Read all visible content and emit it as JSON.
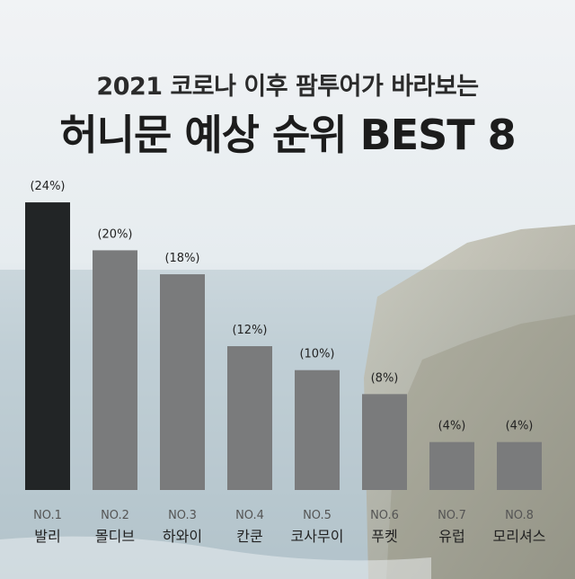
{
  "header": {
    "subtitle": "2021 코로나 이후 팜투어가 바라보는",
    "title": "허니문 예상 순위 BEST 8"
  },
  "colors": {
    "bar_highlight": "#222526",
    "bar_default": "#7a7b7c",
    "sky": "#e9eef1",
    "sea": "#9fb2bd",
    "cliff": "#8a8878"
  },
  "chart_data": {
    "type": "bar",
    "categories": [
      "발리",
      "몰디브",
      "하와이",
      "칸쿤",
      "코사무이",
      "푸켓",
      "유럽",
      "모리셔스"
    ],
    "ranks": [
      "NO.1",
      "NO.2",
      "NO.3",
      "NO.4",
      "NO.5",
      "NO.6",
      "NO.7",
      "NO.8"
    ],
    "values": [
      24,
      20,
      18,
      12,
      10,
      8,
      4,
      4
    ],
    "value_labels": [
      "(24%)",
      "(20%)",
      "(18%)",
      "(12%)",
      "(10%)",
      "(8%)",
      "(4%)",
      "(4%)"
    ],
    "highlight_index": 0,
    "grid": false,
    "legend": false
  }
}
